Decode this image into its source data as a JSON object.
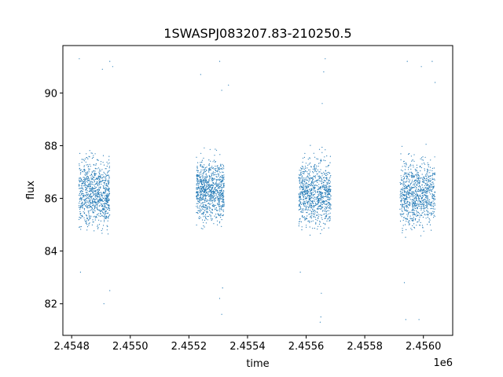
{
  "chart_data": {
    "type": "scatter",
    "title": "1SWASPJ083207.83-210250.5",
    "xlabel": "time",
    "ylabel": "flux",
    "x_offset_label": "1e6",
    "xlim": [
      2454770,
      2456100
    ],
    "ylim": [
      80.8,
      91.8
    ],
    "xticks": [
      {
        "value": 2454800,
        "label": "2.4548"
      },
      {
        "value": 2455000,
        "label": "2.4550"
      },
      {
        "value": 2455200,
        "label": "2.4552"
      },
      {
        "value": 2455400,
        "label": "2.4554"
      },
      {
        "value": 2455600,
        "label": "2.4556"
      },
      {
        "value": 2455800,
        "label": "2.4558"
      },
      {
        "value": 2456000,
        "label": "2.4560"
      }
    ],
    "yticks": [
      {
        "value": 82,
        "label": "82"
      },
      {
        "value": 84,
        "label": "84"
      },
      {
        "value": 86,
        "label": "86"
      },
      {
        "value": 88,
        "label": "88"
      },
      {
        "value": 90,
        "label": "90"
      }
    ],
    "grid": false,
    "series": [
      {
        "color": "#1f77b4",
        "seasons": [
          {
            "x_start": 2454825,
            "x_end": 2454930,
            "y_center": 86.2,
            "y_halfwidth": 1.1
          },
          {
            "x_start": 2455225,
            "x_end": 2455320,
            "y_center": 86.3,
            "y_halfwidth": 1.0
          },
          {
            "x_start": 2455575,
            "x_end": 2455685,
            "y_center": 86.2,
            "y_halfwidth": 1.1
          },
          {
            "x_start": 2455920,
            "x_end": 2456040,
            "y_center": 86.2,
            "y_halfwidth": 1.1
          }
        ],
        "points": [
          [
            2454826,
            91.3
          ],
          [
            2454930,
            91.2
          ],
          [
            2454940,
            91.0
          ],
          [
            2454905,
            90.9
          ],
          [
            2455240,
            90.7
          ],
          [
            2455305,
            91.2
          ],
          [
            2455335,
            90.3
          ],
          [
            2455312,
            90.1
          ],
          [
            2455665,
            91.3
          ],
          [
            2455660,
            90.8
          ],
          [
            2455655,
            89.6
          ],
          [
            2455650,
            81.5
          ],
          [
            2455648,
            81.3
          ],
          [
            2455652,
            82.4
          ],
          [
            2455945,
            91.2
          ],
          [
            2455993,
            91.0
          ],
          [
            2456030,
            91.2
          ],
          [
            2456040,
            90.4
          ],
          [
            2455940,
            81.4
          ],
          [
            2455985,
            81.4
          ],
          [
            2455935,
            82.8
          ],
          [
            2454830,
            83.2
          ],
          [
            2454910,
            82.0
          ],
          [
            2454930,
            82.5
          ],
          [
            2455312,
            81.6
          ],
          [
            2455305,
            82.2
          ],
          [
            2455315,
            82.6
          ],
          [
            2455580,
            83.2
          ]
        ]
      }
    ]
  }
}
